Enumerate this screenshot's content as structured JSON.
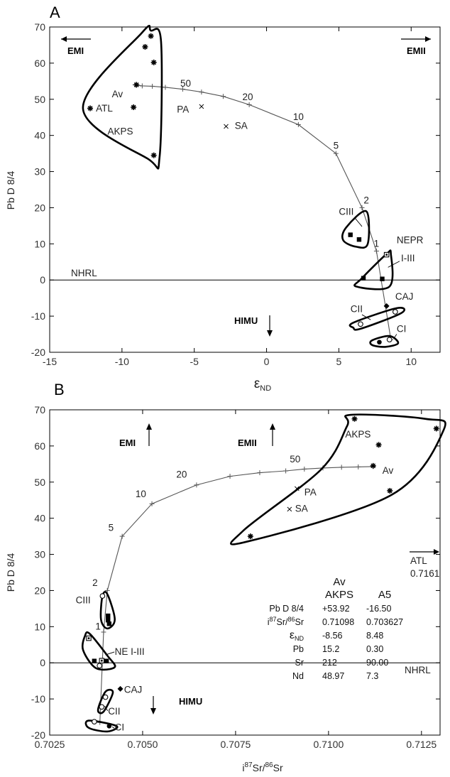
{
  "chart_data": [
    {
      "panel": "A",
      "type": "scatter",
      "xlabel_main": "ε",
      "xlabel_sub": "ND",
      "ylabel": "Pb D 8/4",
      "xlim": [
        -15,
        12
      ],
      "ylim": [
        -20,
        70
      ],
      "xticks": [
        "-15",
        "-10",
        "-5",
        "0",
        "5",
        "10"
      ],
      "yticks": [
        "-20",
        "-10",
        "0",
        "10",
        "20",
        "30",
        "40",
        "50",
        "60",
        "70"
      ],
      "reference_line": {
        "label": "NHRL",
        "y": 0
      },
      "mixing_curve": [
        [
          -9.1,
          54.0
        ],
        [
          -8.6,
          53.7
        ],
        [
          -7.9,
          53.6
        ],
        [
          -7.0,
          53.3
        ],
        [
          -5.8,
          52.8
        ],
        [
          -4.5,
          52.0
        ],
        [
          -3.0,
          50.8
        ],
        [
          -1.2,
          48.5
        ],
        [
          2.2,
          43.0
        ],
        [
          4.8,
          35.0
        ],
        [
          6.6,
          20.0
        ],
        [
          7.6,
          8.0
        ],
        [
          8.6,
          -16.5
        ]
      ],
      "curve_labels": [
        {
          "text": "50",
          "x": -5.6,
          "y": 53.5
        },
        {
          "text": "20",
          "x": -1.3,
          "y": 49.8
        },
        {
          "text": "10",
          "x": 2.2,
          "y": 44.3
        },
        {
          "text": "5",
          "x": 4.8,
          "y": 36.3
        },
        {
          "text": "2",
          "x": 6.9,
          "y": 21.2
        },
        {
          "text": "1",
          "x": 7.6,
          "y": 9.2
        }
      ],
      "fields": [
        {
          "name": "AKPS",
          "outline": [
            [
              -8.0,
              69.0
            ],
            [
              -7.3,
              66.0
            ],
            [
              -7.4,
              34.0
            ],
            [
              -8.2,
              33.5
            ],
            [
              -12.7,
              47.5
            ],
            [
              -8.6,
              68.5
            ]
          ]
        },
        {
          "name": "CIII",
          "outline": [
            [
              6.9,
              19.0
            ],
            [
              7.0,
              10.0
            ],
            [
              6.2,
              9.2
            ],
            [
              5.3,
              11.0
            ],
            [
              5.5,
              14.5
            ]
          ]
        },
        {
          "name": "NEPR I-III",
          "outline": [
            [
              8.6,
              7.2
            ],
            [
              8.5,
              -1.8
            ],
            [
              6.2,
              -1.8
            ],
            [
              6.6,
              0.5
            ],
            [
              8.3,
              7.2
            ]
          ]
        },
        {
          "name": "CII",
          "outline": [
            [
              9.3,
              -9.2
            ],
            [
              9.0,
              -7.8
            ],
            [
              6.0,
              -11.8
            ],
            [
              6.0,
              -13.2
            ],
            [
              6.5,
              -13.5
            ]
          ]
        },
        {
          "name": "CI",
          "outline": [
            [
              9.1,
              -17.5
            ],
            [
              8.5,
              -15.5
            ],
            [
              7.3,
              -16.7
            ],
            [
              7.3,
              -18.0
            ],
            [
              8.2,
              -18.5
            ]
          ]
        }
      ],
      "points": [
        {
          "label": "AKPS",
          "symbol": "star",
          "x": -8.0,
          "y": 67.5
        },
        {
          "label": "AKPS",
          "symbol": "star",
          "x": -8.4,
          "y": 64.5
        },
        {
          "label": "AKPS",
          "symbol": "star",
          "x": -7.8,
          "y": 60.2
        },
        {
          "label": "AKPS",
          "symbol": "star",
          "x": -9.2,
          "y": 47.8
        },
        {
          "label": "AKPS",
          "symbol": "star",
          "x": -7.8,
          "y": 34.5
        },
        {
          "label": "ATL",
          "symbol": "star",
          "x": -12.2,
          "y": 47.5
        },
        {
          "label": "Av",
          "symbol": "star",
          "x": -9.0,
          "y": 54.0
        },
        {
          "label": "PA",
          "symbol": "x",
          "x": -4.5,
          "y": 48.0
        },
        {
          "label": "SA",
          "symbol": "x",
          "x": -2.8,
          "y": 42.5
        },
        {
          "label": "CIII",
          "symbol": "square",
          "x": 5.8,
          "y": 12.5
        },
        {
          "label": "CIII",
          "symbol": "square",
          "x": 6.4,
          "y": 11.2
        },
        {
          "label": "NEPR I-III",
          "symbol": "square",
          "x": 6.7,
          "y": 0.5
        },
        {
          "label": "NEPR I-III",
          "symbol": "square",
          "x": 8.0,
          "y": 0.3
        },
        {
          "label": "NEPR I-III",
          "symbol": "open-square",
          "x": 8.3,
          "y": 7.0
        },
        {
          "label": "CAJ",
          "symbol": "diamond",
          "x": 8.3,
          "y": -7.2
        },
        {
          "label": "CII",
          "symbol": "open-circle",
          "x": 6.5,
          "y": -12.2
        },
        {
          "label": "CII",
          "symbol": "open-circle",
          "x": 8.9,
          "y": -8.8
        },
        {
          "label": "CI",
          "symbol": "circle",
          "x": 7.8,
          "y": -17.2
        },
        {
          "label": "CI",
          "symbol": "open-circle",
          "x": 8.5,
          "y": -16.5
        }
      ]
    },
    {
      "panel": "B",
      "type": "scatter",
      "xlabel": "i87Sr/86Sr",
      "ylabel": "Pb D 8/4",
      "xlim": [
        0.7025,
        0.713
      ],
      "ylim": [
        -20,
        70
      ],
      "xticks": [
        "0.7025",
        "0.7050",
        "0.7075",
        "0.7100",
        "0.7125"
      ],
      "yticks": [
        "-20",
        "-10",
        "0",
        "10",
        "20",
        "30",
        "40",
        "50",
        "60",
        "70"
      ],
      "reference_line": {
        "label": "NHRL",
        "y": 0
      },
      "mixing_curve": [
        [
          0.70385,
          -16.5
        ],
        [
          0.70395,
          8.5
        ],
        [
          0.70405,
          20.0
        ],
        [
          0.70445,
          35.0
        ],
        [
          0.70525,
          44.0
        ],
        [
          0.70645,
          49.2
        ],
        [
          0.70735,
          51.6
        ],
        [
          0.70815,
          52.6
        ],
        [
          0.70885,
          53.1
        ],
        [
          0.70935,
          53.6
        ],
        [
          0.70985,
          53.9
        ],
        [
          0.71035,
          54.1
        ],
        [
          0.7108,
          54.2
        ],
        [
          0.7112,
          54.3
        ]
      ],
      "curve_labels": [
        {
          "text": "50",
          "x": 0.7091,
          "y": 55.5
        },
        {
          "text": "20",
          "x": 0.70605,
          "y": 51.2
        },
        {
          "text": "10",
          "x": 0.70495,
          "y": 45.8
        },
        {
          "text": "5",
          "x": 0.70415,
          "y": 36.5
        },
        {
          "text": "2",
          "x": 0.70372,
          "y": 21.3
        },
        {
          "text": "1",
          "x": 0.7038,
          "y": 9.2
        }
      ],
      "fields": [
        {
          "name": "AKPS",
          "outline": [
            [
              0.7106,
              68.6
            ],
            [
              0.7126,
              67.5
            ],
            [
              0.7131,
              64.5
            ],
            [
              0.7117,
              46.5
            ],
            [
              0.7078,
              33.5
            ],
            [
              0.7077,
              36.5
            ],
            [
              0.7098,
              53.5
            ],
            [
              0.7105,
              65.5
            ]
          ]
        },
        {
          "name": "CIII",
          "outline": [
            [
              0.70405,
              19.0
            ],
            [
              0.70425,
              12.0
            ],
            [
              0.70405,
              9.5
            ],
            [
              0.70388,
              12.0
            ],
            [
              0.70392,
              18.5
            ]
          ]
        },
        {
          "name": "NE I-III",
          "outline": [
            [
              0.70358,
              8.0
            ],
            [
              0.70405,
              2.0
            ],
            [
              0.70425,
              -1.2
            ],
            [
              0.70375,
              -1.5
            ],
            [
              0.7034,
              3.5
            ],
            [
              0.70345,
              7.5
            ]
          ]
        },
        {
          "name": "CII",
          "outline": [
            [
              0.7042,
              -8.2
            ],
            [
              0.70395,
              -13.5
            ],
            [
              0.7038,
              -13.0
            ],
            [
              0.704,
              -8.0
            ]
          ]
        },
        {
          "name": "CI",
          "outline": [
            [
              0.70355,
              -16.0
            ],
            [
              0.7043,
              -17.5
            ],
            [
              0.70405,
              -19.0
            ],
            [
              0.70355,
              -18.0
            ]
          ]
        }
      ],
      "points": [
        {
          "label": "AKPS",
          "symbol": "star",
          "x": 0.7107,
          "y": 67.5
        },
        {
          "label": "AKPS",
          "symbol": "star",
          "x": 0.71135,
          "y": 60.3
        },
        {
          "label": "AKPS",
          "symbol": "star",
          "x": 0.7129,
          "y": 64.8
        },
        {
          "label": "AKPS",
          "symbol": "star",
          "x": 0.71165,
          "y": 47.6
        },
        {
          "label": "AKPS",
          "symbol": "star",
          "x": 0.7079,
          "y": 35.0
        },
        {
          "label": "Av",
          "symbol": "star",
          "x": 0.7112,
          "y": 54.5
        },
        {
          "label": "PA",
          "symbol": "x",
          "x": 0.70915,
          "y": 48.2
        },
        {
          "label": "SA",
          "symbol": "x",
          "x": 0.70895,
          "y": 42.5
        },
        {
          "label": "CIII",
          "symbol": "square",
          "x": 0.70407,
          "y": 13.0
        },
        {
          "label": "CIII",
          "symbol": "square",
          "x": 0.70407,
          "y": 11.8
        },
        {
          "label": "CIII",
          "symbol": "square",
          "x": 0.7041,
          "y": 10.8
        },
        {
          "label": "CIII",
          "symbol": "open-circle",
          "x": 0.70392,
          "y": 18.5
        },
        {
          "label": "NE I-III",
          "symbol": "open-square",
          "x": 0.70355,
          "y": 6.8
        },
        {
          "label": "NE I-III",
          "symbol": "square",
          "x": 0.7037,
          "y": 0.5
        },
        {
          "label": "NE I-III",
          "symbol": "square",
          "x": 0.70403,
          "y": 0.5
        },
        {
          "label": "NE I-III",
          "symbol": "open-square",
          "x": 0.7039,
          "y": 0.6
        },
        {
          "label": "NE I-III",
          "symbol": "open-circle",
          "x": 0.70384,
          "y": -0.8
        },
        {
          "label": "CAJ",
          "symbol": "diamond",
          "x": 0.7044,
          "y": -7.2
        },
        {
          "label": "CII",
          "symbol": "open-circle",
          "x": 0.704,
          "y": -9.5
        },
        {
          "label": "CII",
          "symbol": "open-circle",
          "x": 0.7039,
          "y": -12.2
        },
        {
          "label": "CI",
          "symbol": "open-circle",
          "x": 0.7037,
          "y": -16.3
        },
        {
          "label": "CI",
          "symbol": "circle",
          "x": 0.7041,
          "y": -17.5
        }
      ],
      "table": {
        "title": "Av",
        "col1_header": "AKPS",
        "col2_header": "A5",
        "rows": [
          {
            "name": "Pb D 8/4",
            "c1": "+53.92",
            "c2": "-16.50"
          },
          {
            "name": "i87Sr/86Sr",
            "c1": "0.71098",
            "c2": "0.703627"
          },
          {
            "name": "εND",
            "c1": "-8.56",
            "c2": "8.48"
          },
          {
            "name": "Pb",
            "c1": "15.2",
            "c2": "0.30"
          },
          {
            "name": "Sr",
            "c1": "212",
            "c2": "90.00"
          },
          {
            "name": "Nd",
            "c1": "48.97",
            "c2": "7.3"
          }
        ]
      },
      "atl_value": "0.7161"
    }
  ],
  "text": {
    "panel_a": "A",
    "panel_b": "B",
    "ylabel": "Pb D 8/4",
    "nhrl": "NHRL",
    "emi": "EMI",
    "emii": "EMII",
    "himu": "HIMU",
    "akps": "AKPS",
    "atl": "ATL",
    "av": "Av",
    "pa": "PA",
    "sa": "SA",
    "ciii": "CIII",
    "cii": "CII",
    "ci": "CI",
    "caj": "CAJ",
    "nepr": "NEPR",
    "i_iii": "I-III",
    "ne_i_iii": "NE I-III",
    "eps_main": "ε",
    "eps_sub": "ND",
    "sr_i": "i",
    "sr_87": "87",
    "sr_mid": "Sr/",
    "sr_86": "86",
    "sr_end": "Sr",
    "atl_value": "0.7161"
  }
}
